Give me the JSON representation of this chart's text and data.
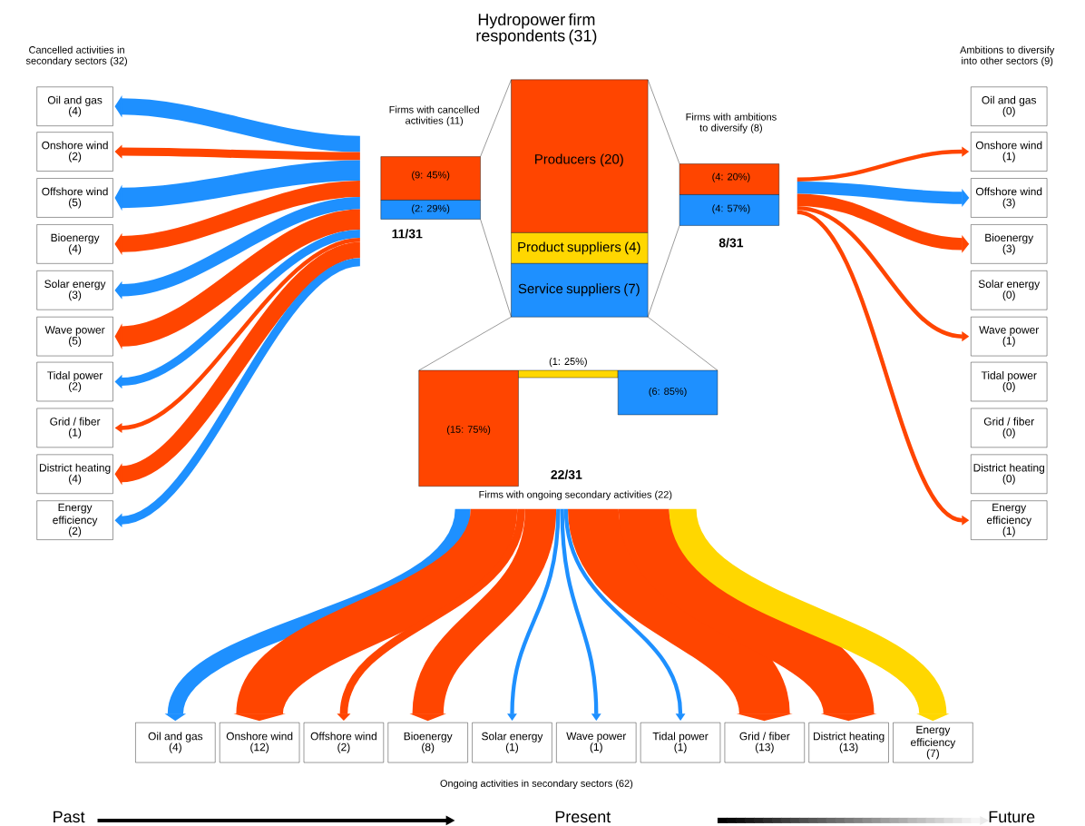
{
  "chart_data": {
    "type": "other",
    "title": "Hydropower firm respondents (31)",
    "categories": [
      "Oil and gas",
      "Onshore wind",
      "Offshore wind",
      "Bioenergy",
      "Solar energy",
      "Wave power",
      "Tidal power",
      "Grid / fiber",
      "District heating",
      "Energy efficiency"
    ],
    "series": [
      {
        "name": "Cancelled activities in secondary sectors (32)",
        "values": [
          4,
          2,
          5,
          4,
          3,
          5,
          2,
          1,
          4,
          2
        ],
        "value_labels": [
          "(4)",
          "(2)",
          "(5)",
          "(4)",
          "(3)",
          "(5)",
          "(2)",
          "(1)",
          "(4)",
          "(2)"
        ],
        "colors": [
          "#1e90ff",
          "#ff4500",
          "#1e90ff",
          "#ff4500",
          "#1e90ff",
          "#ff4500",
          "#1e90ff",
          "#ff4500",
          "#ff4500",
          "#1e90ff"
        ]
      },
      {
        "name": "Ambitions to diversify into other sectors (9)",
        "values": [
          0,
          1,
          3,
          3,
          0,
          1,
          0,
          0,
          0,
          1
        ],
        "value_labels": [
          "(0)",
          "(1)",
          "(3)",
          "(3)",
          "(0)",
          "(1)",
          "(0)",
          "(0)",
          "(0)",
          "(1)"
        ],
        "colors": [
          "#ff4500",
          "#ff4500",
          "#1e90ff",
          "#ff4500",
          "#ff4500",
          "#ff4500",
          "#ff4500",
          "#ff4500",
          "#ff4500",
          "#ff4500"
        ]
      },
      {
        "name": "Ongoing activities in secondary sectors (62)",
        "values": [
          4,
          12,
          2,
          8,
          1,
          1,
          1,
          13,
          13,
          7
        ],
        "value_labels": [
          "(4)",
          "(12)",
          "(2)",
          "(8)",
          "(1)",
          "(1)",
          "(1)",
          "(13)",
          "(13)",
          "(7)"
        ],
        "colors": [
          "#1e90ff",
          "#ff4500",
          "#ff4500",
          "#ff4500",
          "#1e90ff",
          "#1e90ff",
          "#1e90ff",
          "#ff4500",
          "#ff4500",
          "#ffd700"
        ]
      }
    ],
    "annotations": [
      "Producers (20)",
      "Product suppliers (4)",
      "Service suppliers (7)",
      "Firms with cancelled activities (11)",
      "(9: 45%)",
      "(2: 29%)",
      "11/31",
      "Firms with ambitions to diversify (8)",
      "(4: 20%)",
      "(4: 57%)",
      "8/31",
      "(15: 75%)",
      "(1: 25%)",
      "(6: 85%)",
      "22/31",
      "Firms with ongoing secondary activities (22)",
      "Past",
      "Present",
      "Future"
    ]
  }
}
